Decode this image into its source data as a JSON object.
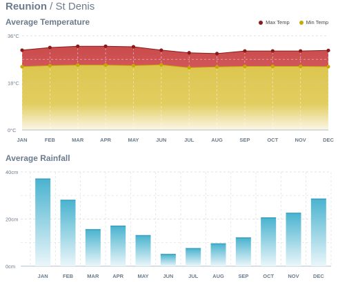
{
  "header": {
    "country": "Reunion",
    "separator": "/",
    "city": "St Denis"
  },
  "chart_data": [
    {
      "type": "area",
      "title": "Average Temperature",
      "categories": [
        "JAN",
        "FEB",
        "MAR",
        "APR",
        "MAY",
        "JUN",
        "JUL",
        "AUG",
        "SEP",
        "OCT",
        "NOV",
        "DEC"
      ],
      "series": [
        {
          "name": "Max Temp",
          "color": "#8b1a1a",
          "values": [
            30.5,
            31.5,
            32,
            32,
            31.8,
            30.5,
            29.5,
            29.2,
            30.2,
            30.2,
            30.2,
            30.4
          ]
        },
        {
          "name": "Min Temp",
          "color": "#c9a800",
          "values": [
            24.2,
            24.6,
            24.8,
            24.8,
            24.6,
            24.9,
            23.8,
            24.1,
            24.3,
            24.3,
            24.3,
            24.2
          ]
        }
      ],
      "yticks": [
        "0°C",
        "18°C",
        "36°C"
      ],
      "ylim": [
        0,
        36
      ],
      "legend_position": "top-right",
      "grid": true
    },
    {
      "type": "bar",
      "title": "Average Rainfall",
      "categories": [
        "JAN",
        "FEB",
        "MAR",
        "APR",
        "MAY",
        "JUN",
        "JUL",
        "AUG",
        "SEP",
        "OCT",
        "NOV",
        "DEC"
      ],
      "values": [
        37,
        28,
        15.5,
        17,
        13,
        5,
        7.5,
        9.5,
        12,
        20.5,
        22.5,
        28.5
      ],
      "yticks": [
        "0cm",
        "20cm",
        "40cm"
      ],
      "ylim": [
        0,
        40
      ],
      "color": "#4ab3cf",
      "grid": true
    }
  ]
}
